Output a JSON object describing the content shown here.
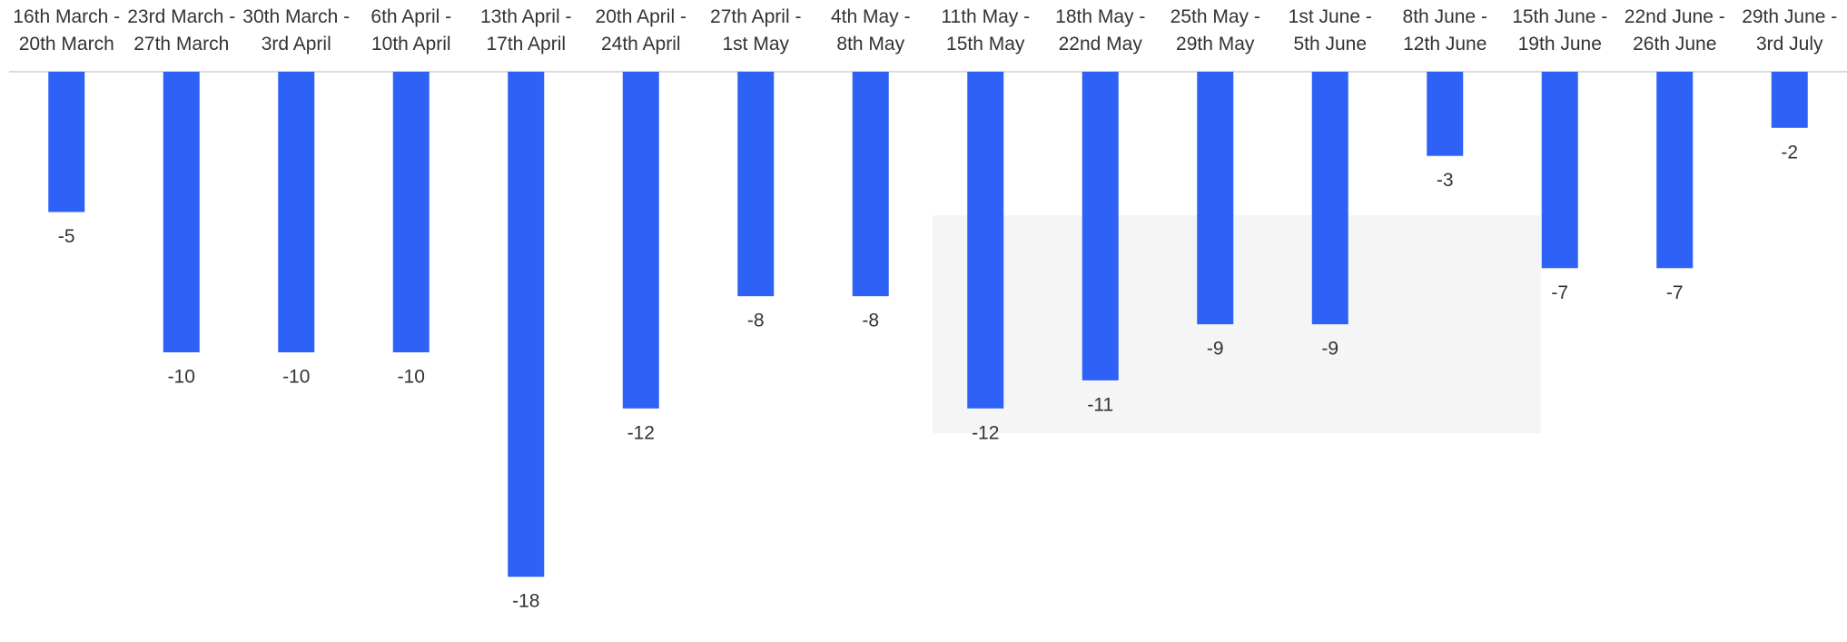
{
  "chart_data": {
    "type": "bar",
    "categories": [
      "16th March -\n20th March",
      "23rd March -\n27th March",
      "30th March -\n3rd April",
      "6th April -\n10th April",
      "13th April -\n17th April",
      "20th April -\n24th April",
      "27th April -\n1st May",
      "4th May -\n8th May",
      "11th May -\n15th May",
      "18th May -\n22nd May",
      "25th May -\n29th May",
      "1st June -\n5th June",
      "8th June -\n12th June",
      "15th June -\n19th June",
      "22nd June -\n26th June",
      "29th June -\n3rd July"
    ],
    "values": [
      -5,
      -10,
      -10,
      -10,
      -18,
      -12,
      -8,
      -8,
      -12,
      -11,
      -9,
      -9,
      -3,
      -7,
      -7,
      -2
    ],
    "color": "#2e62f7",
    "ylim": [
      -20,
      0
    ]
  }
}
